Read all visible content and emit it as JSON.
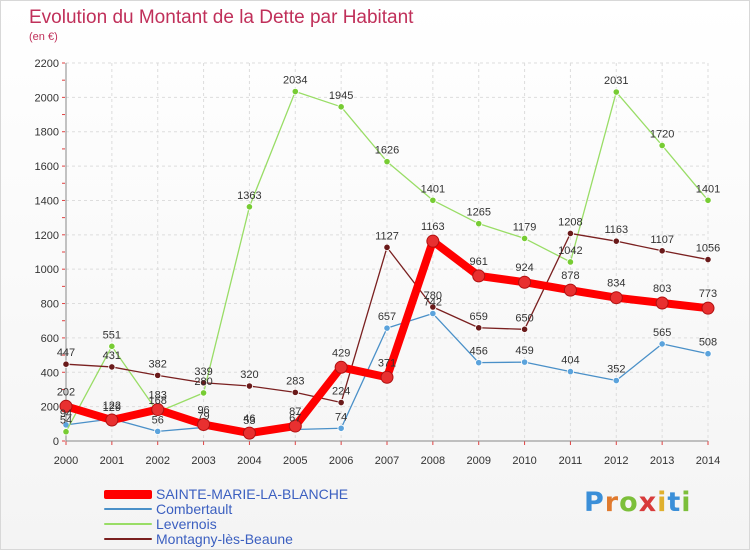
{
  "page": {
    "logo_text": "Proxiti"
  },
  "chart_data": {
    "type": "line",
    "title": "Evolution du Montant de la Dette par Habitant",
    "subtitle": "(en €)",
    "xlabel": "",
    "ylabel": "",
    "x": [
      2000,
      2001,
      2002,
      2003,
      2004,
      2005,
      2006,
      2007,
      2008,
      2009,
      2010,
      2011,
      2012,
      2013,
      2014
    ],
    "ylim": [
      0,
      2200
    ],
    "yticks": [
      0,
      200,
      400,
      600,
      800,
      1000,
      1200,
      1400,
      1600,
      1800,
      2000,
      2200
    ],
    "grid": true,
    "legend_position": "bottom-left",
    "series": [
      {
        "name": "SAINTE-MARIE-LA-BLANCHE",
        "color": "#ff0000",
        "marker_color": "#e83030",
        "values": [
          202,
          122,
          183,
          96,
          46,
          87,
          429,
          371,
          1163,
          961,
          924,
          878,
          834,
          803,
          773
        ]
      },
      {
        "name": "Combertault",
        "color": "#4a90c8",
        "marker_color": "#5ba3dc",
        "values": [
          94,
          129,
          56,
          79,
          53,
          67,
          74,
          657,
          742,
          456,
          459,
          404,
          352,
          565,
          508
        ]
      },
      {
        "name": "Levernois",
        "color": "#99dd66",
        "marker_color": "#77cc33",
        "values": [
          54,
          551,
          168,
          280,
          1363,
          2034,
          1945,
          1626,
          1401,
          1265,
          1179,
          1042,
          2031,
          1720,
          1401
        ]
      },
      {
        "name": "Montagny-lès-Beaune",
        "color": "#7a2020",
        "marker_color": "#6a1a1a",
        "values": [
          447,
          431,
          382,
          339,
          320,
          283,
          224,
          1127,
          780,
          659,
          650,
          1208,
          1163,
          1107,
          1056
        ]
      }
    ]
  }
}
